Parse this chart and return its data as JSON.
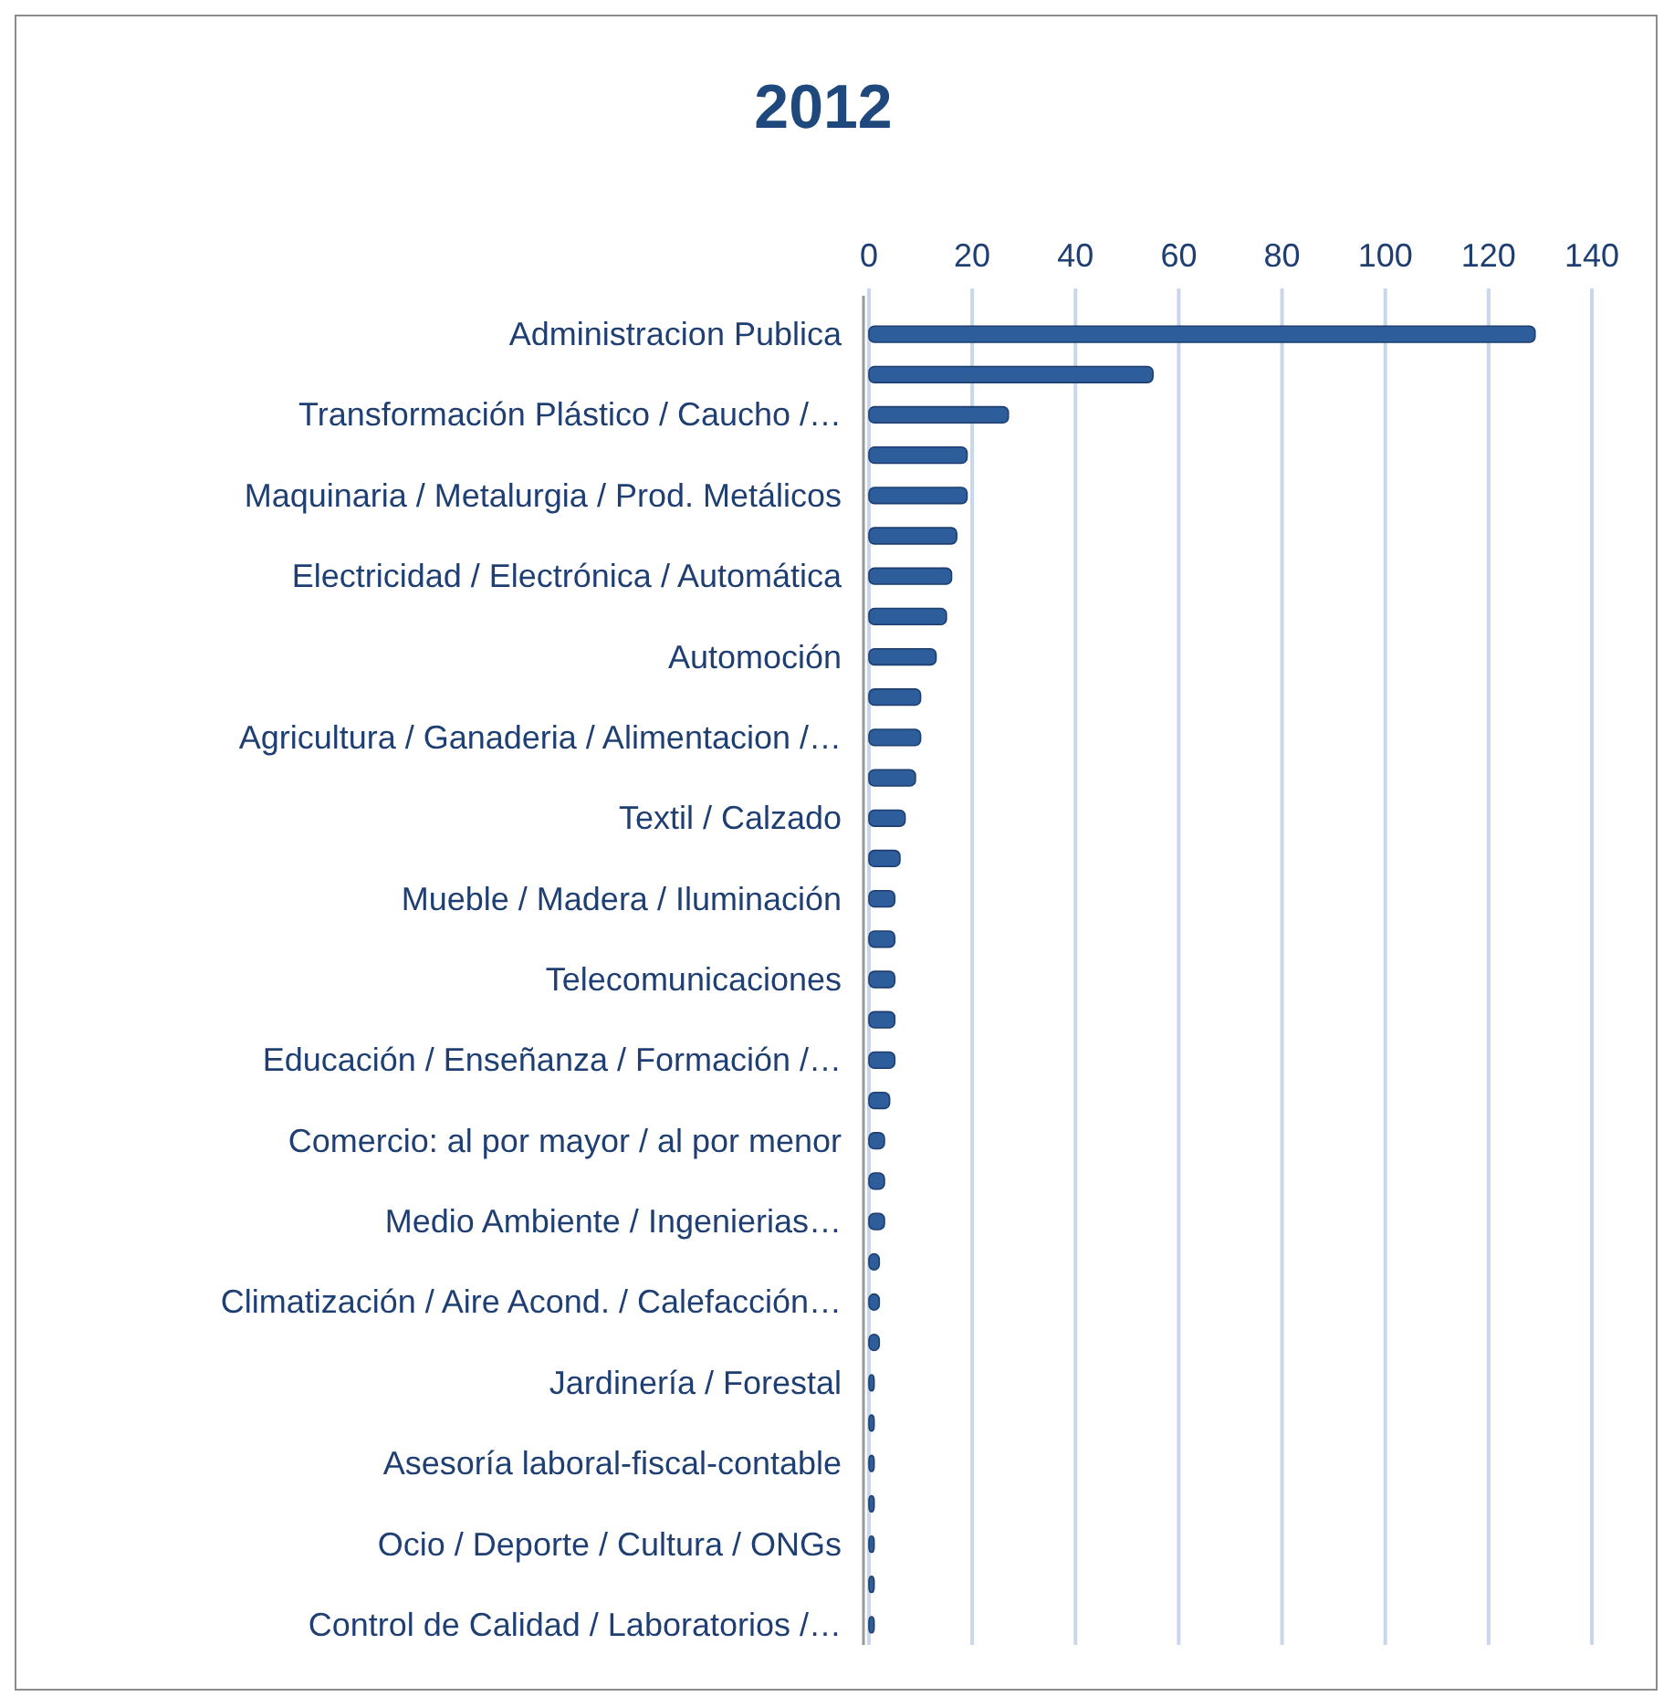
{
  "chart_data": {
    "type": "bar",
    "orientation": "horizontal",
    "title": "2012",
    "categories": [
      "Administracion Publica",
      null,
      "Transformación Plástico / Caucho /…",
      null,
      "Maquinaria / Metalurgia / Prod. Metálicos",
      null,
      "Electricidad / Electrónica / Automática",
      null,
      "Automoción",
      null,
      "Agricultura / Ganaderia / Alimentacion /…",
      null,
      "Textil / Calzado",
      null,
      "Mueble / Madera / Iluminación",
      null,
      "Telecomunicaciones",
      null,
      "Educación / Enseñanza / Formación /…",
      null,
      "Comercio: al por mayor / al por menor",
      null,
      "Medio Ambiente / Ingenierias…",
      null,
      "Climatización / Aire Acond. / Calefacción…",
      null,
      "Jardinería / Forestal",
      null,
      "Asesoría  laboral-fiscal-contable",
      null,
      "Ocio / Deporte / Cultura / ONGs",
      null,
      "Control de Calidad / Laboratorios /…"
    ],
    "values": [
      129,
      55,
      27,
      19,
      19,
      17,
      16,
      15,
      13,
      10,
      10,
      9,
      7,
      6,
      5,
      5,
      5,
      5,
      5,
      4,
      3,
      3,
      3,
      2,
      2,
      2,
      1,
      1,
      1,
      1,
      1,
      1,
      1
    ],
    "color": "#2e5d9c",
    "xlim": [
      0,
      140
    ],
    "xticks": [
      0,
      20,
      40,
      60,
      80,
      100,
      120,
      140
    ],
    "grid": "x"
  }
}
